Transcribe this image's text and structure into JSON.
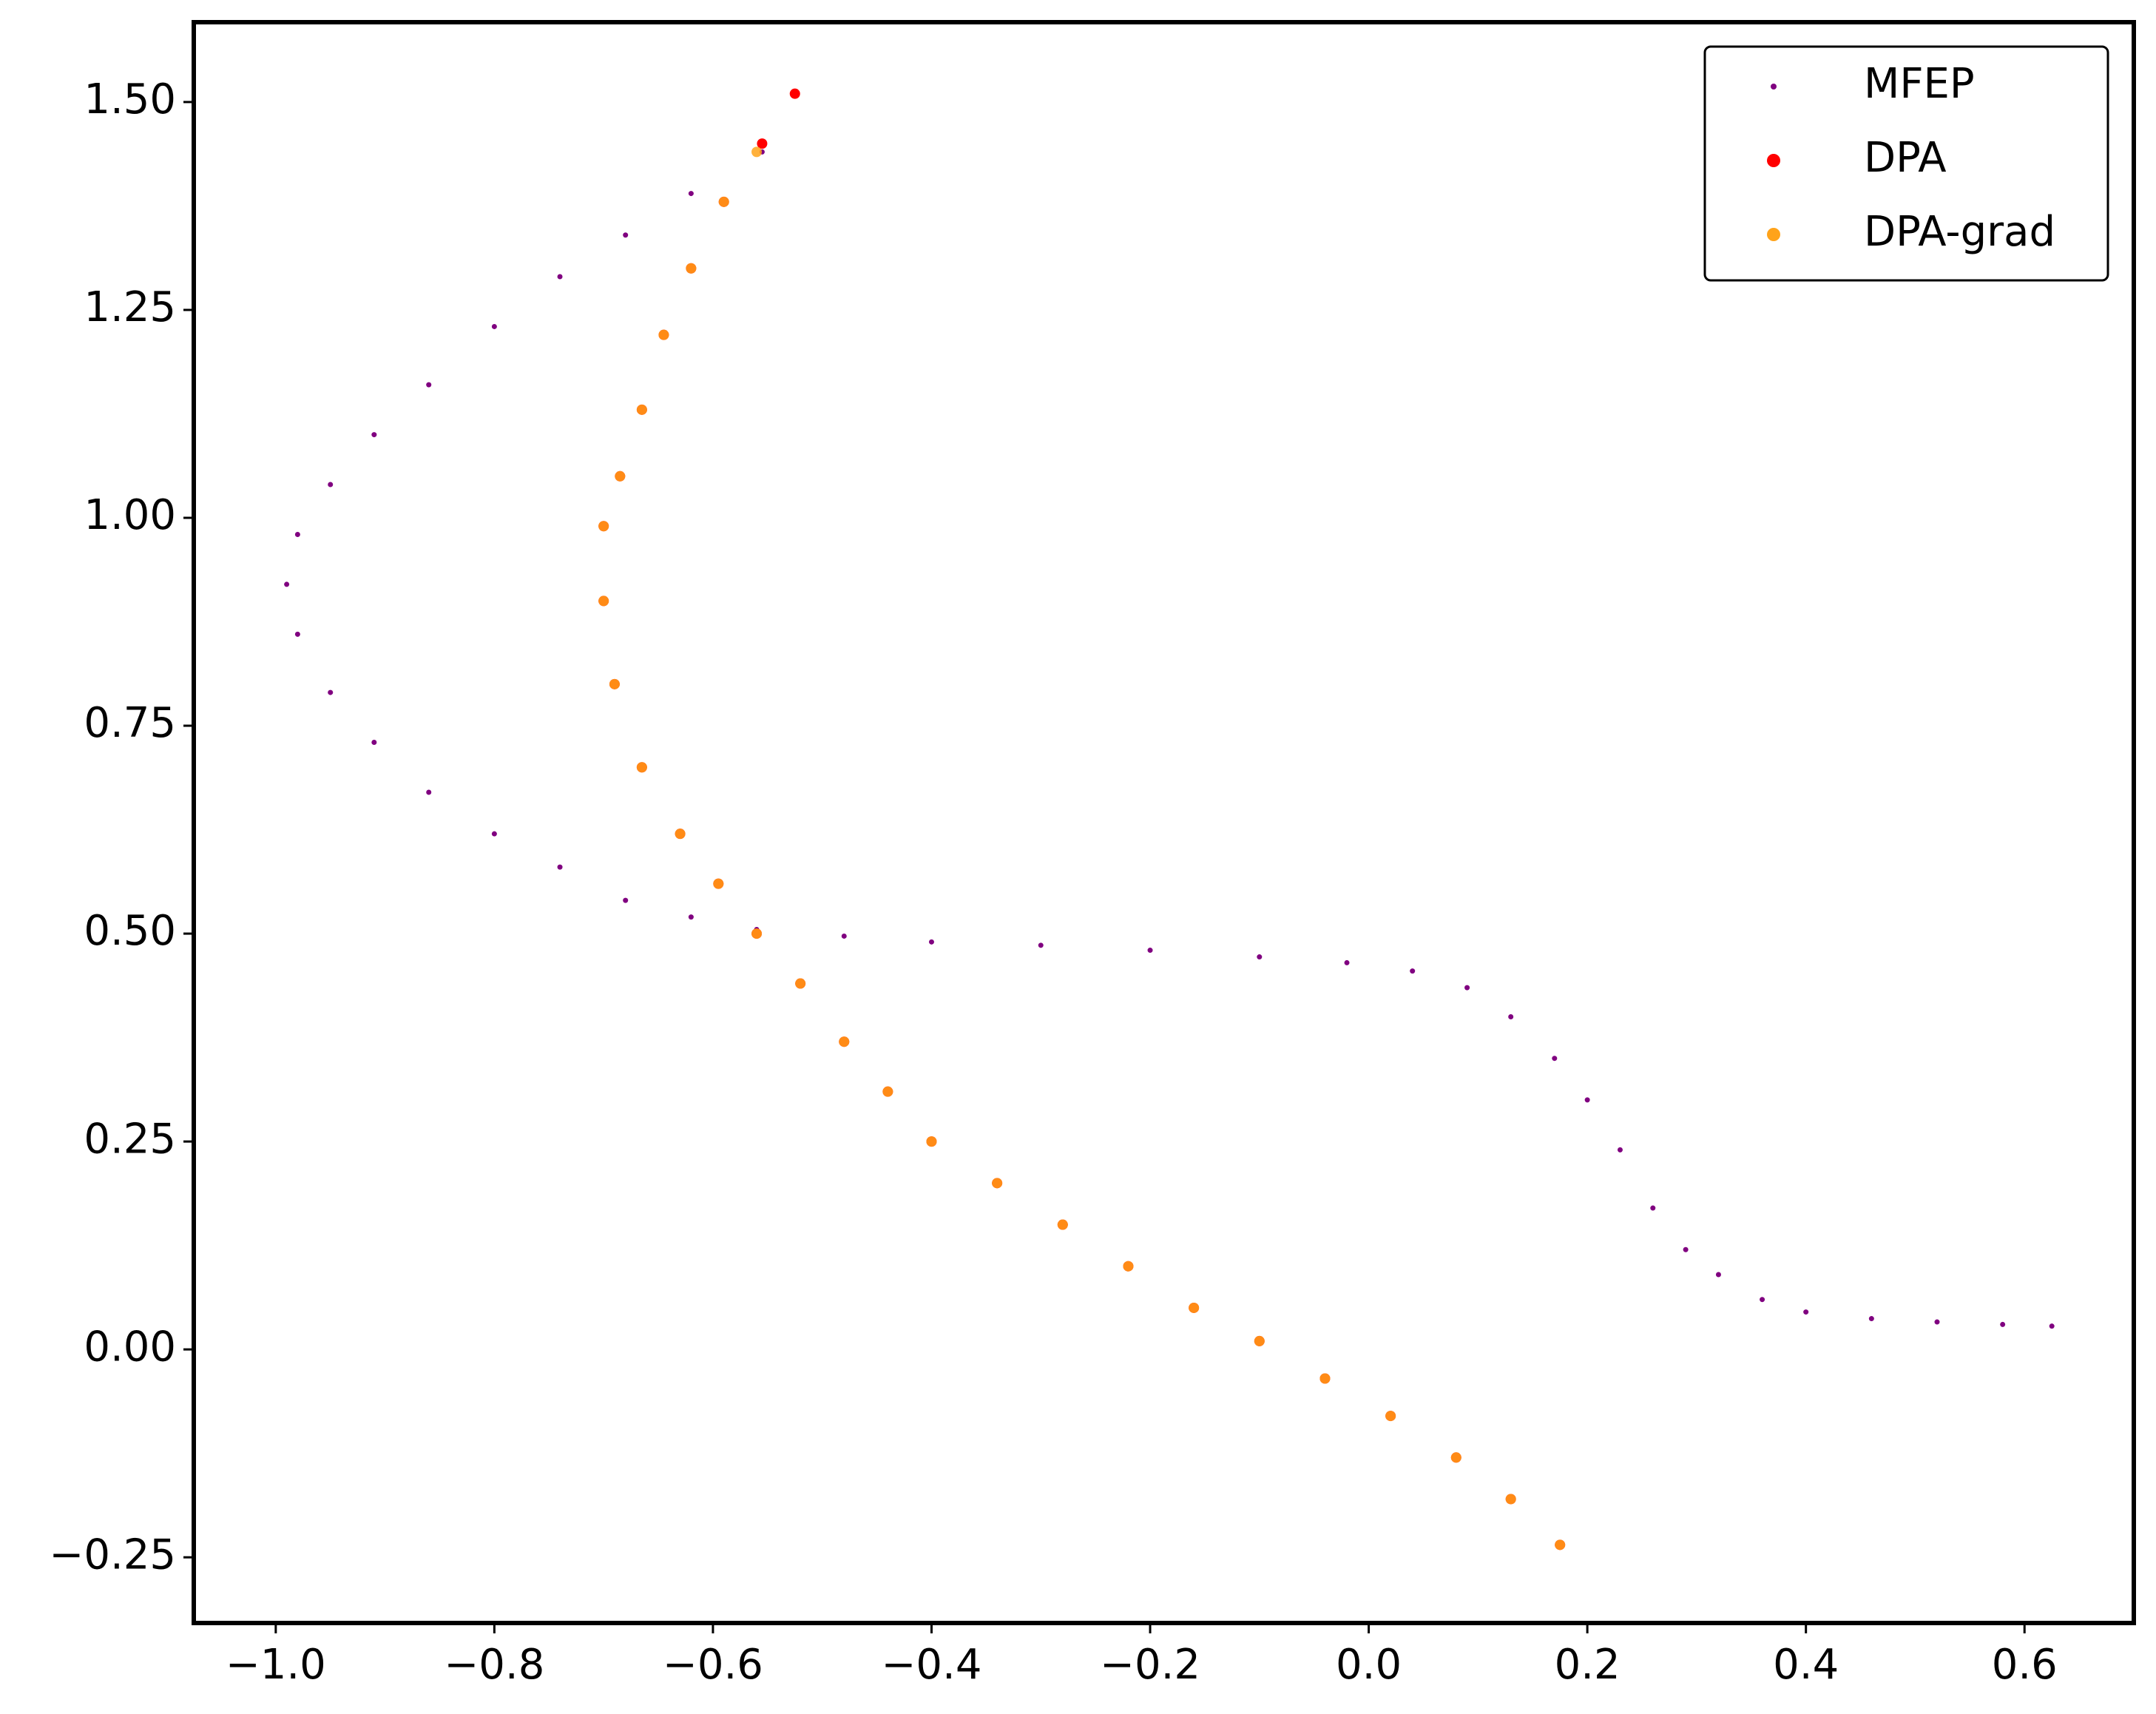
{
  "chart_data": {
    "type": "scatter",
    "xlim": [
      -1.075,
      0.7
    ],
    "ylim": [
      -0.329,
      1.596
    ],
    "xticks": [
      {
        "value": -1.0,
        "label": "−1.0"
      },
      {
        "value": -0.8,
        "label": "−0.8"
      },
      {
        "value": -0.6,
        "label": "−0.6"
      },
      {
        "value": -0.4,
        "label": "−0.4"
      },
      {
        "value": -0.2,
        "label": "−0.2"
      },
      {
        "value": 0.0,
        "label": "0.0"
      },
      0.2,
      0.4,
      0.6
    ],
    "yticks": [
      {
        "value": -0.25,
        "label": "−0.25"
      },
      {
        "value": 0.0,
        "label": "0.00"
      },
      0.25,
      {
        "value": 0.5,
        "label": "0.50"
      },
      0.75,
      {
        "value": 1.0,
        "label": "1.00"
      },
      1.25,
      {
        "value": 1.5,
        "label": "1.50"
      }
    ],
    "legend": "upper right",
    "series": [
      {
        "name": "MFEP",
        "color": "#800080",
        "x": [
          -0.555,
          -0.62,
          -0.68,
          -0.74,
          -0.8,
          -0.86,
          -0.91,
          -0.95,
          -0.98,
          -0.99,
          -0.98,
          -0.95,
          -0.91,
          -0.86,
          -0.8,
          -0.74,
          -0.68,
          -0.62,
          -0.56,
          -0.48,
          -0.4,
          -0.3,
          -0.2,
          -0.1,
          -0.02,
          0.04,
          0.09,
          0.13,
          0.17,
          0.2,
          0.23,
          0.26,
          0.29,
          0.32,
          0.36,
          0.4,
          0.46,
          0.52,
          0.58,
          0.625
        ],
        "y": [
          1.44,
          1.39,
          1.34,
          1.29,
          1.23,
          1.16,
          1.1,
          1.04,
          0.98,
          0.92,
          0.86,
          0.79,
          0.73,
          0.67,
          0.62,
          0.58,
          0.54,
          0.52,
          0.505,
          0.497,
          0.49,
          0.486,
          0.48,
          0.472,
          0.465,
          0.455,
          0.435,
          0.4,
          0.35,
          0.3,
          0.24,
          0.17,
          0.12,
          0.09,
          0.06,
          0.045,
          0.037,
          0.033,
          0.03,
          0.028
        ]
      },
      {
        "name": "DPA",
        "color": "#ff0000",
        "x": [
          -0.525,
          -0.555,
          -0.59,
          -0.62,
          -0.645,
          -0.665,
          -0.685,
          -0.7,
          -0.7,
          -0.69,
          -0.665,
          -0.63,
          -0.595,
          -0.56,
          -0.52,
          -0.48,
          -0.44,
          -0.4,
          -0.34,
          -0.28,
          -0.22,
          -0.16,
          -0.1,
          -0.04,
          0.02,
          0.08,
          0.13,
          0.175
        ],
        "y": [
          1.51,
          1.45,
          1.38,
          1.3,
          1.22,
          1.13,
          1.05,
          0.99,
          0.9,
          0.8,
          0.7,
          0.62,
          0.56,
          0.5,
          0.44,
          0.37,
          0.31,
          0.25,
          0.2,
          0.15,
          0.1,
          0.05,
          0.01,
          -0.035,
          -0.08,
          -0.13,
          -0.18,
          -0.235
        ]
      },
      {
        "name": "DPA-grad",
        "color": "#ffa31a",
        "x": [
          -0.56,
          -0.59,
          -0.62,
          -0.645,
          -0.665,
          -0.685,
          -0.7,
          -0.7,
          -0.69,
          -0.665,
          -0.63,
          -0.595,
          -0.56,
          -0.52,
          -0.48,
          -0.44,
          -0.4,
          -0.34,
          -0.28,
          -0.22,
          -0.16,
          -0.1,
          -0.04,
          0.02,
          0.08,
          0.13,
          0.175
        ],
        "y": [
          1.44,
          1.38,
          1.3,
          1.22,
          1.13,
          1.05,
          0.99,
          0.9,
          0.8,
          0.7,
          0.62,
          0.56,
          0.5,
          0.44,
          0.37,
          0.31,
          0.25,
          0.2,
          0.15,
          0.1,
          0.05,
          0.01,
          -0.035,
          -0.08,
          -0.13,
          -0.18,
          -0.235
        ]
      }
    ]
  }
}
